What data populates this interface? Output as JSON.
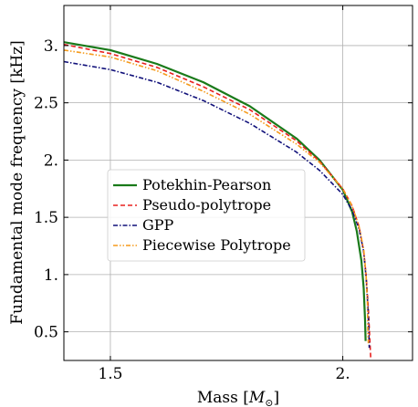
{
  "chart_data": {
    "type": "line",
    "xlabel": "Mass [M⊙]",
    "ylabel": "Fundamental mode frequency [kHz]",
    "xlim": [
      1.4,
      2.15
    ],
    "ylim": [
      0.25,
      3.35
    ],
    "xticks": [
      1.5,
      2.0
    ],
    "xtick_labels": [
      "1.5",
      "2."
    ],
    "yticks": [
      0.5,
      1.0,
      1.5,
      2.0,
      2.5,
      3.0
    ],
    "ytick_labels": [
      "0.5",
      "1.",
      "1.5",
      "2.",
      "2.5",
      "3."
    ],
    "grid": true,
    "legend_position": "center-left",
    "series": [
      {
        "name": "Potekhin-Pearson",
        "color": "#1a7a1a",
        "dash": "solid",
        "points": [
          [
            1.4,
            3.03
          ],
          [
            1.5,
            2.96
          ],
          [
            1.6,
            2.84
          ],
          [
            1.7,
            2.68
          ],
          [
            1.8,
            2.47
          ],
          [
            1.9,
            2.19
          ],
          [
            1.95,
            2.0
          ],
          [
            2.0,
            1.74
          ],
          [
            2.02,
            1.55
          ],
          [
            2.03,
            1.38
          ],
          [
            2.04,
            1.12
          ],
          [
            2.045,
            0.88
          ],
          [
            2.048,
            0.6
          ],
          [
            2.049,
            0.42
          ]
        ]
      },
      {
        "name": "Pseudo-polytrope",
        "color": "#e8201e",
        "dash": "dashed",
        "points": [
          [
            1.4,
            3.01
          ],
          [
            1.5,
            2.93
          ],
          [
            1.6,
            2.81
          ],
          [
            1.7,
            2.64
          ],
          [
            1.8,
            2.44
          ],
          [
            1.9,
            2.17
          ],
          [
            1.95,
            1.99
          ],
          [
            2.0,
            1.75
          ],
          [
            2.02,
            1.6
          ],
          [
            2.035,
            1.42
          ],
          [
            2.045,
            1.2
          ],
          [
            2.05,
            1.0
          ],
          [
            2.055,
            0.7
          ],
          [
            2.058,
            0.45
          ],
          [
            2.06,
            0.27
          ]
        ]
      },
      {
        "name": "GPP",
        "color": "#10107a",
        "dash": "dashdot",
        "points": [
          [
            1.4,
            2.86
          ],
          [
            1.5,
            2.79
          ],
          [
            1.6,
            2.68
          ],
          [
            1.7,
            2.52
          ],
          [
            1.8,
            2.32
          ],
          [
            1.9,
            2.07
          ],
          [
            1.95,
            1.91
          ],
          [
            2.0,
            1.7
          ],
          [
            2.02,
            1.56
          ],
          [
            2.035,
            1.4
          ],
          [
            2.045,
            1.2
          ],
          [
            2.05,
            0.98
          ],
          [
            2.054,
            0.72
          ],
          [
            2.056,
            0.5
          ],
          [
            2.057,
            0.36
          ]
        ]
      },
      {
        "name": "Piecewise Polytrope",
        "color": "#f59a1b",
        "dash": "dashdotdot",
        "points": [
          [
            1.4,
            2.96
          ],
          [
            1.5,
            2.9
          ],
          [
            1.6,
            2.78
          ],
          [
            1.7,
            2.6
          ],
          [
            1.8,
            2.4
          ],
          [
            1.9,
            2.14
          ],
          [
            1.95,
            1.98
          ],
          [
            2.0,
            1.75
          ],
          [
            2.02,
            1.6
          ],
          [
            2.035,
            1.42
          ],
          [
            2.045,
            1.22
          ],
          [
            2.05,
            1.0
          ],
          [
            2.053,
            0.75
          ],
          [
            2.054,
            0.5
          ],
          [
            2.055,
            0.4
          ]
        ]
      }
    ]
  }
}
